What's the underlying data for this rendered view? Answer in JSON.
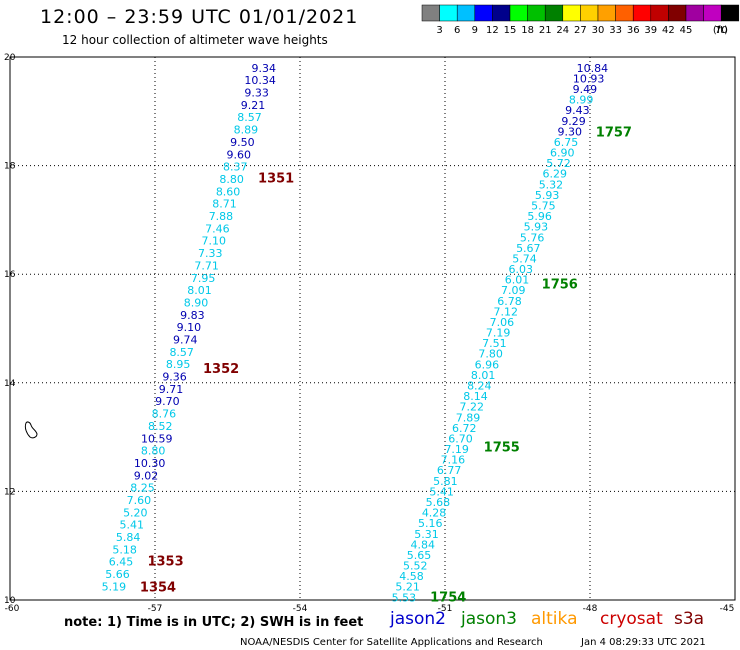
{
  "header": {
    "title": "12:00 – 23:59 UTC 01/01/2021",
    "subtitle": "12 hour collection of altimeter wave heights"
  },
  "scale": {
    "unit": "(ft)",
    "colors": [
      "#808080",
      "#00ffff",
      "#00c0ff",
      "#0000ff",
      "#00008b",
      "#00ff00",
      "#00c000",
      "#008000",
      "#ffff00",
      "#ffd000",
      "#ffa000",
      "#ff6000",
      "#ff0000",
      "#c00000",
      "#800000",
      "#a000a0",
      "#c000c0",
      "#000000"
    ],
    "ticks": [
      "3",
      "6",
      "9",
      "12",
      "15",
      "18",
      "21",
      "24",
      "27",
      "30",
      "33",
      "36",
      "39",
      "42",
      "45",
      "70"
    ]
  },
  "footer": {
    "note": "note:  1) Time is in UTC;  2) SWH is in feet",
    "credit": "NOAA/NESDIS Center for Satellite Applications and Research",
    "timestamp": "Jan  4 08:29:33 UTC 2021"
  },
  "legend": [
    {
      "name": "jason2",
      "color": "#0000cc"
    },
    {
      "name": "jason3",
      "color": "#008000"
    },
    {
      "name": "altika",
      "color": "#ff9900"
    },
    {
      "name": "cryosat",
      "color": "#cc0000"
    },
    {
      "name": "s3a",
      "color": "#800000"
    }
  ],
  "chart_data": {
    "type": "scatter",
    "title": "12 hour collection of altimeter wave heights",
    "xlim": [
      -60,
      -45
    ],
    "ylim": [
      10,
      20
    ],
    "x_ticks": [
      "-60",
      "-57",
      "-54",
      "-51",
      "-48",
      "-45"
    ],
    "y_ticks": [
      "10",
      "12",
      "14",
      "16",
      "18",
      "20"
    ],
    "grid": true,
    "colors": {
      "light": "#00c8e8",
      "dark": "#0000b0"
    },
    "tracks": [
      {
        "satellite": "s3a",
        "color": "#800000",
        "times": [
          {
            "label": "1351",
            "y": 17.78
          },
          {
            "label": "1352",
            "y": 14.27
          },
          {
            "label": "1353",
            "y": 10.73
          },
          {
            "label": "1354",
            "y": 10.25
          }
        ],
        "start": [
          -54.75,
          19.8
        ],
        "end": [
          -57.85,
          10.25
        ],
        "values": [
          "9.34",
          "10.34",
          "9.33",
          "9.21",
          "8.57",
          "8.89",
          "9.50",
          "9.60",
          "8.37",
          "8.80",
          "8.60",
          "8.71",
          "7.88",
          "7.46",
          "7.10",
          "7.33",
          "7.71",
          "7.95",
          "8.01",
          "8.90",
          "9.83",
          "9.10",
          "9.74",
          "8.57",
          "8.95",
          "9.36",
          "9.71",
          "9.70",
          "8.76",
          "8.52",
          "10.59",
          "8.80",
          "10.30",
          "9.02",
          "8.25",
          "7.60",
          "5.20",
          "5.41",
          "5.84",
          "5.18",
          "6.45",
          "5.66",
          "5.19"
        ]
      },
      {
        "satellite": "jason3",
        "color": "#008000",
        "times": [
          {
            "label": "1757",
            "y": 18.63
          },
          {
            "label": "1756",
            "y": 15.83
          },
          {
            "label": "1755",
            "y": 12.83
          },
          {
            "label": "1754",
            "y": 10.06
          }
        ],
        "start": [
          -47.95,
          19.8
        ],
        "end": [
          -51.85,
          10.05
        ],
        "values": [
          "10.84",
          "10.93",
          "9.49",
          "8.99",
          "9.43",
          "9.29",
          "9.30",
          "6.75",
          "6.90",
          "5.72",
          "6.29",
          "5.32",
          "5.93",
          "5.75",
          "5.96",
          "5.93",
          "5.76",
          "5.67",
          "5.74",
          "6.03",
          "6.01",
          "7.09",
          "6.78",
          "7.12",
          "7.06",
          "7.19",
          "7.51",
          "7.80",
          "6.96",
          "8.01",
          "8.24",
          "8.14",
          "7.22",
          "7.89",
          "6.72",
          "6.70",
          "7.19",
          "7.16",
          "6.77",
          "5.81",
          "5.41",
          "5.68",
          "4.28",
          "5.16",
          "5.31",
          "4.84",
          "5.65",
          "5.52",
          "4.58",
          "5.21",
          "5.53"
        ]
      }
    ]
  }
}
